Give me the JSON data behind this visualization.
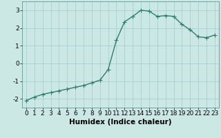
{
  "x": [
    0,
    1,
    2,
    3,
    4,
    5,
    6,
    7,
    8,
    9,
    10,
    11,
    12,
    13,
    14,
    15,
    16,
    17,
    18,
    19,
    20,
    21,
    22,
    23
  ],
  "y": [
    -2.1,
    -1.9,
    -1.75,
    -1.65,
    -1.55,
    -1.45,
    -1.35,
    -1.25,
    -1.1,
    -0.95,
    -0.35,
    1.3,
    2.35,
    2.65,
    3.0,
    2.95,
    2.65,
    2.7,
    2.65,
    2.2,
    1.9,
    1.5,
    1.45,
    1.6
  ],
  "line_color": "#2e7d6e",
  "marker": "+",
  "marker_size": 4,
  "background_color": "#cce8e4",
  "grid_color": "#aacfcb",
  "xlabel": "Humidex (Indice chaleur)",
  "ylabel": "",
  "xlim": [
    -0.5,
    23.5
  ],
  "ylim": [
    -2.5,
    3.5
  ],
  "yticks": [
    -2,
    -1,
    0,
    1,
    2,
    3
  ],
  "xticks": [
    0,
    1,
    2,
    3,
    4,
    5,
    6,
    7,
    8,
    9,
    10,
    11,
    12,
    13,
    14,
    15,
    16,
    17,
    18,
    19,
    20,
    21,
    22,
    23
  ],
  "xlabel_fontsize": 7.5,
  "tick_fontsize": 6.5,
  "line_width": 1.0
}
